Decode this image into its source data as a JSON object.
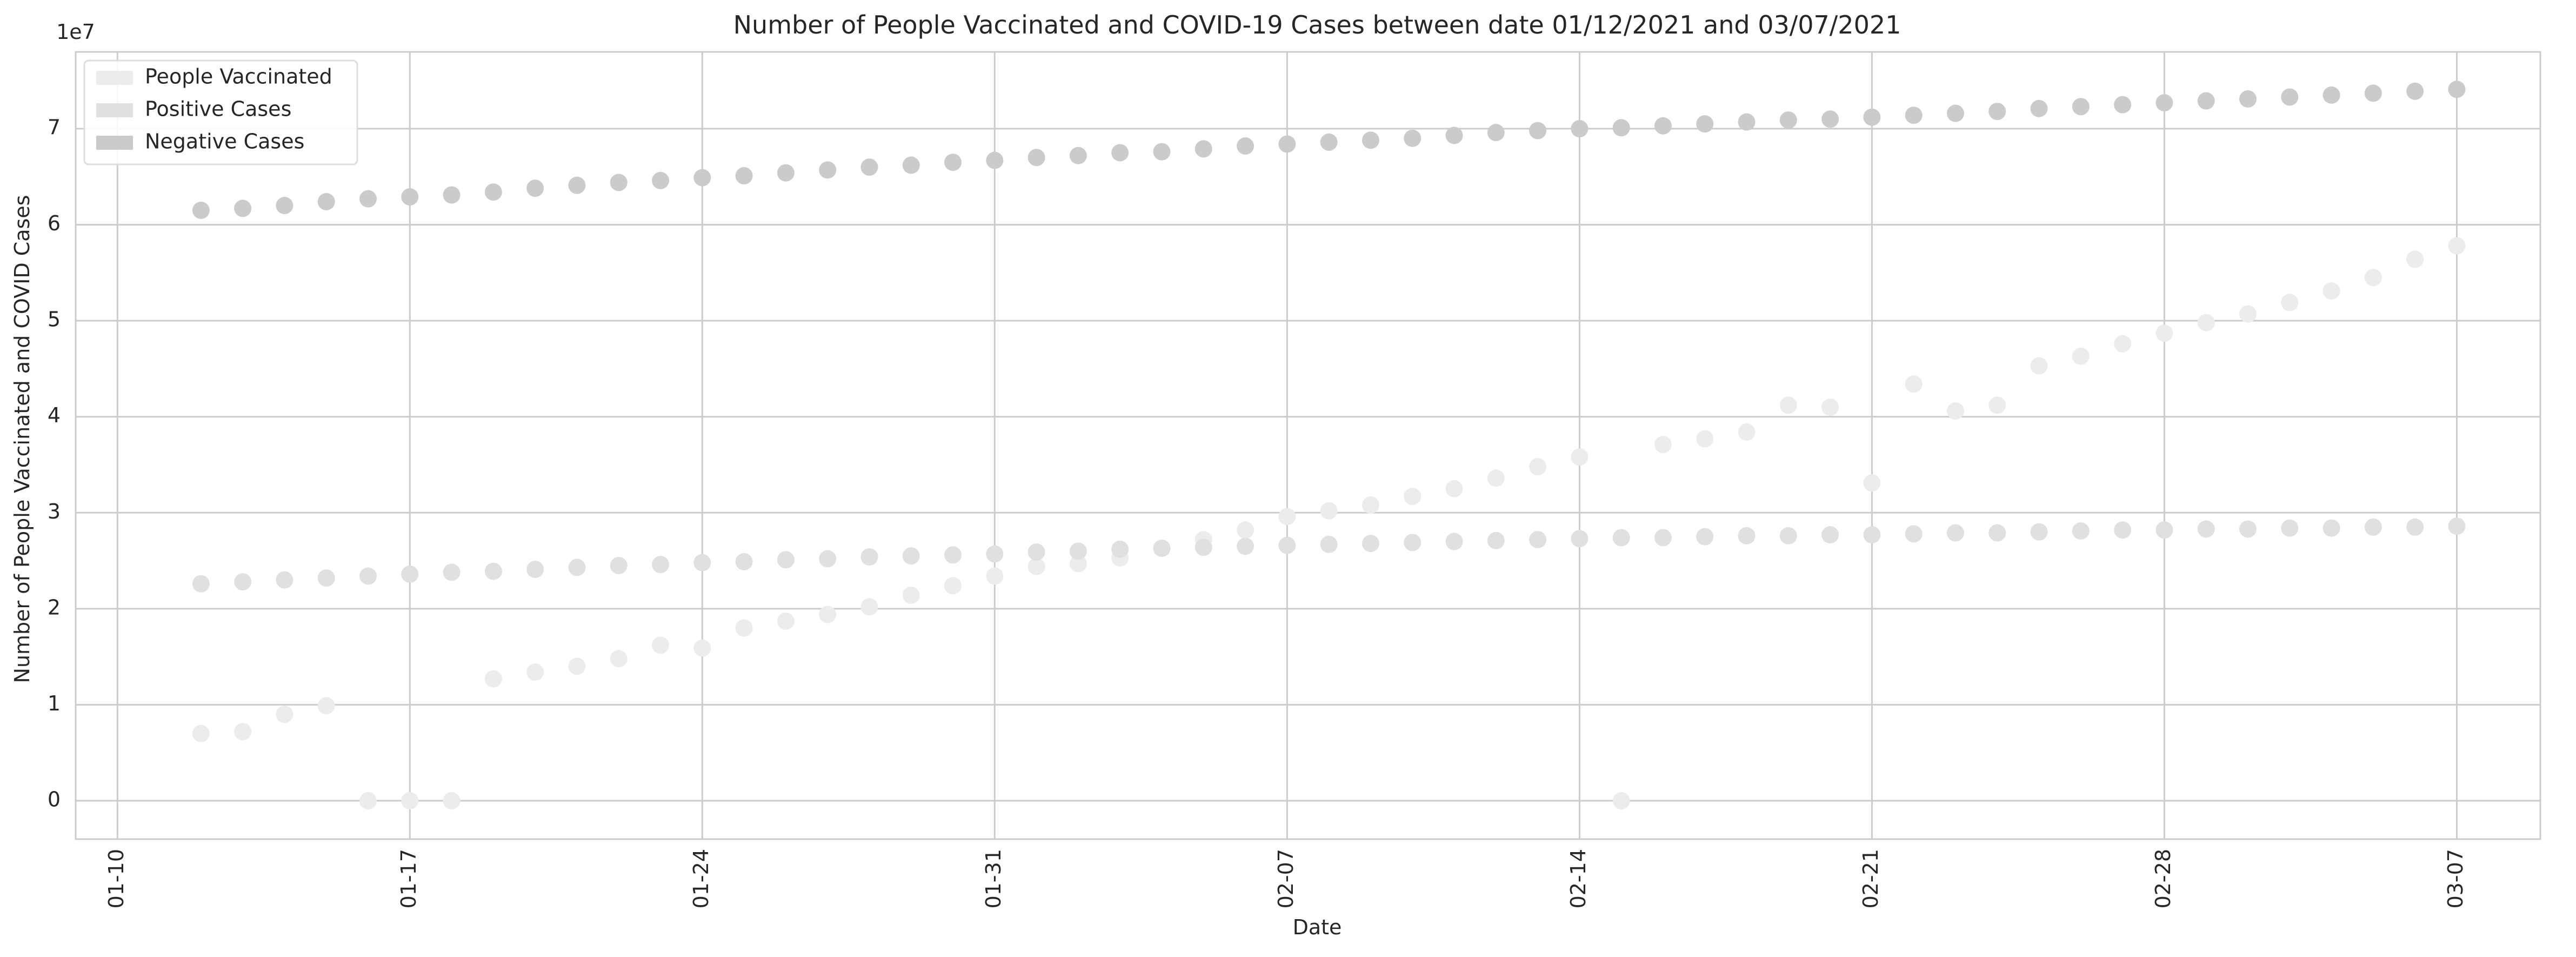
{
  "chart_data": {
    "type": "scatter",
    "title": "Number of People Vaccinated and COVID-19 Cases between date 01/12/2021 and 03/07/2021",
    "xlabel": "Date",
    "ylabel": "Number of People Vaccinated and COVID Cases",
    "y_offset_label": "1e7",
    "xlim": [
      "2021-01-09",
      "2021-03-09"
    ],
    "ylim": [
      -4000000,
      78000000
    ],
    "grid": true,
    "legend_position": "upper-left",
    "x_ticks": [
      "2021-01-10",
      "2021-01-17",
      "2021-01-24",
      "2021-01-31",
      "2021-02-07",
      "2021-02-14",
      "2021-02-21",
      "2021-02-28",
      "2021-03-07"
    ],
    "x_tick_labels": [
      "01-10",
      "01-17",
      "01-24",
      "01-31",
      "02-07",
      "02-14",
      "02-21",
      "02-28",
      "03-07"
    ],
    "y_ticks": [
      0,
      10000000,
      20000000,
      30000000,
      40000000,
      50000000,
      60000000,
      70000000
    ],
    "y_tick_labels": [
      "0",
      "1",
      "2",
      "3",
      "4",
      "5",
      "6",
      "7"
    ],
    "x": [
      "2021-01-12",
      "2021-01-13",
      "2021-01-14",
      "2021-01-15",
      "2021-01-16",
      "2021-01-17",
      "2021-01-18",
      "2021-01-19",
      "2021-01-20",
      "2021-01-21",
      "2021-01-22",
      "2021-01-23",
      "2021-01-24",
      "2021-01-25",
      "2021-01-26",
      "2021-01-27",
      "2021-01-28",
      "2021-01-29",
      "2021-01-30",
      "2021-01-31",
      "2021-02-01",
      "2021-02-02",
      "2021-02-03",
      "2021-02-04",
      "2021-02-05",
      "2021-02-06",
      "2021-02-07",
      "2021-02-08",
      "2021-02-09",
      "2021-02-10",
      "2021-02-11",
      "2021-02-12",
      "2021-02-13",
      "2021-02-14",
      "2021-02-15",
      "2021-02-16",
      "2021-02-17",
      "2021-02-18",
      "2021-02-19",
      "2021-02-20",
      "2021-02-21",
      "2021-02-22",
      "2021-02-23",
      "2021-02-24",
      "2021-02-25",
      "2021-02-26",
      "2021-02-27",
      "2021-02-28",
      "2021-03-01",
      "2021-03-02",
      "2021-03-03",
      "2021-03-04",
      "2021-03-05",
      "2021-03-06",
      "2021-03-07"
    ],
    "series": [
      {
        "name": "People Vaccinated",
        "color": "#ececec",
        "values": [
          7000000,
          7200000,
          9000000,
          9900000,
          0,
          0,
          0,
          12700000,
          13400000,
          14000000,
          14800000,
          16200000,
          15900000,
          18000000,
          18700000,
          19400000,
          20200000,
          21400000,
          22400000,
          23400000,
          24400000,
          24700000,
          25300000,
          26300000,
          27200000,
          28200000,
          29600000,
          30200000,
          30800000,
          31700000,
          32500000,
          33600000,
          34800000,
          35800000,
          0,
          37100000,
          37700000,
          38400000,
          41200000,
          41000000,
          33100000,
          43400000,
          40600000,
          41200000,
          45300000,
          46300000,
          47600000,
          48700000,
          49800000,
          50700000,
          51900000,
          53100000,
          54500000,
          56400000,
          57800000
        ]
      },
      {
        "name": "Positive Cases",
        "color": "#e0e0e0",
        "values": [
          22600000,
          22800000,
          23000000,
          23200000,
          23400000,
          23600000,
          23800000,
          23900000,
          24100000,
          24300000,
          24500000,
          24600000,
          24800000,
          24900000,
          25100000,
          25200000,
          25400000,
          25500000,
          25600000,
          25700000,
          25900000,
          26000000,
          26200000,
          26300000,
          26400000,
          26500000,
          26600000,
          26700000,
          26800000,
          26900000,
          27000000,
          27100000,
          27200000,
          27300000,
          27400000,
          27400000,
          27500000,
          27600000,
          27600000,
          27700000,
          27700000,
          27800000,
          27900000,
          27900000,
          28000000,
          28100000,
          28200000,
          28200000,
          28300000,
          28300000,
          28400000,
          28400000,
          28500000,
          28500000,
          28600000
        ]
      },
      {
        "name": "Negative Cases",
        "color": "#cbcbcb",
        "values": [
          61500000,
          61700000,
          62000000,
          62400000,
          62700000,
          62900000,
          63100000,
          63400000,
          63800000,
          64100000,
          64400000,
          64600000,
          64900000,
          65100000,
          65400000,
          65700000,
          66000000,
          66200000,
          66500000,
          66700000,
          67000000,
          67200000,
          67500000,
          67600000,
          67900000,
          68200000,
          68400000,
          68600000,
          68800000,
          69000000,
          69300000,
          69600000,
          69800000,
          70000000,
          70100000,
          70300000,
          70500000,
          70700000,
          70900000,
          71000000,
          71200000,
          71400000,
          71600000,
          71800000,
          72100000,
          72300000,
          72500000,
          72700000,
          72900000,
          73100000,
          73300000,
          73500000,
          73700000,
          73900000,
          74100000
        ]
      }
    ]
  }
}
